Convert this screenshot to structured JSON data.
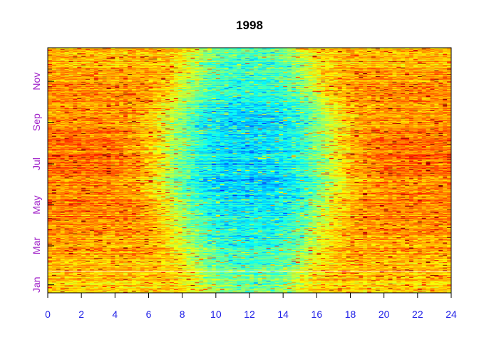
{
  "chart_data": {
    "type": "heatmap",
    "title": "1998",
    "xlabel": "",
    "ylabel": "",
    "x": {
      "range": [
        0,
        24
      ],
      "ticks": [
        0,
        2,
        4,
        6,
        8,
        10,
        12,
        14,
        16,
        18,
        20,
        22,
        24
      ],
      "tick_labels": [
        "0",
        "2",
        "4",
        "6",
        "8",
        "10",
        "12",
        "14",
        "16",
        "18",
        "20",
        "22",
        "24"
      ],
      "tick_color": "#1e1ee6"
    },
    "y": {
      "range_days": [
        1,
        365
      ],
      "ticks": [
        {
          "label": "Jan",
          "day": 13
        },
        {
          "label": "Mar",
          "day": 71
        },
        {
          "label": "May",
          "day": 132
        },
        {
          "label": "Jul",
          "day": 193
        },
        {
          "label": "Sep",
          "day": 255
        },
        {
          "label": "Nov",
          "day": 316
        }
      ],
      "tick_color": "#a020c8"
    },
    "colormap": "jet",
    "grid": false,
    "legend": "none",
    "notable_features": {
      "low_center_hour": 12,
      "low_hours_approx": [
        7,
        18
      ],
      "blank_row_day": 33
    }
  }
}
